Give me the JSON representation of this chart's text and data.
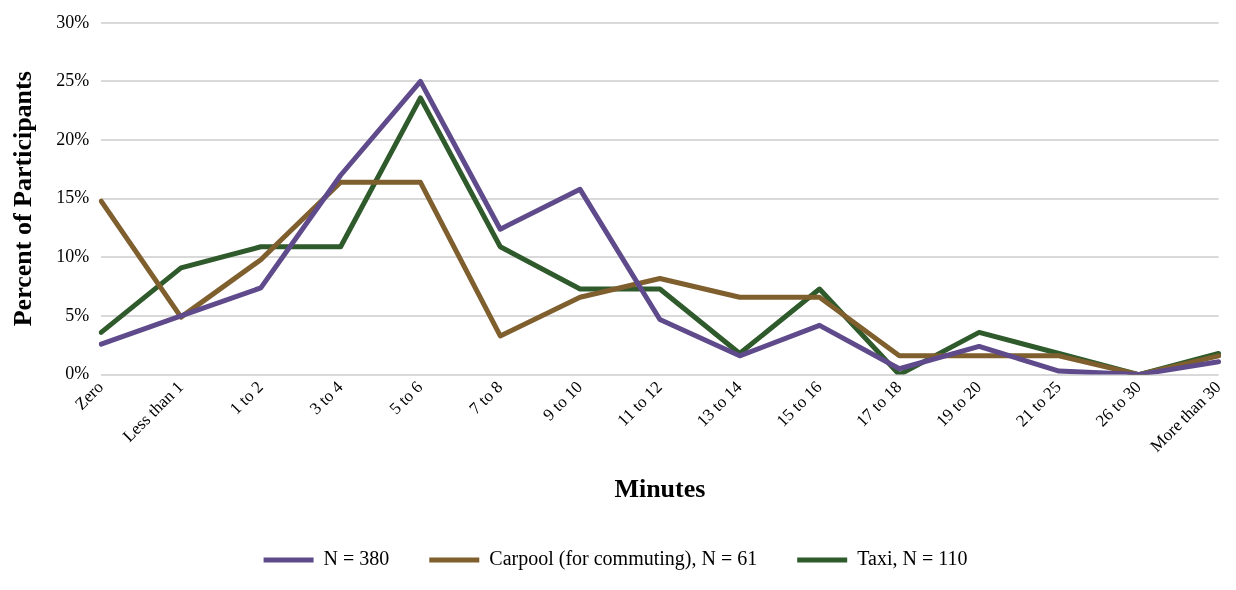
{
  "chart_data": {
    "type": "line",
    "xlabel": "Minutes",
    "ylabel": "Percent of Participants",
    "categories": [
      "Zero",
      "Less than 1",
      "1 to 2",
      "3 to 4",
      "5 to 6",
      "7 to 8",
      "9 to 10",
      "11 to 12",
      "13 to 14",
      "15 to 16",
      "17 to 18",
      "19 to 20",
      "21 to 25",
      "26 to 30",
      "More than 30"
    ],
    "series": [
      {
        "name": "N = 380",
        "color": "#5f4b8b",
        "values": [
          2.6,
          5.0,
          7.4,
          17.0,
          25.0,
          12.4,
          15.8,
          4.7,
          1.6,
          4.2,
          0.5,
          2.4,
          0.3,
          0,
          1.1
        ]
      },
      {
        "name": "Carpool (for commuting), N = 61",
        "color": "#7f5f2e",
        "values": [
          14.8,
          4.9,
          9.8,
          16.4,
          16.4,
          3.3,
          6.6,
          8.2,
          6.6,
          6.6,
          1.6,
          1.6,
          1.6,
          0,
          1.6
        ]
      },
      {
        "name": "Taxi, N = 110",
        "color": "#2f5a2b",
        "values": [
          3.6,
          9.1,
          10.9,
          10.9,
          23.6,
          10.9,
          7.3,
          7.3,
          1.8,
          7.3,
          0,
          3.6,
          1.8,
          0,
          1.8
        ]
      }
    ],
    "ylim": [
      0,
      30
    ],
    "yticks": [
      {
        "value": 0,
        "label": "0%"
      },
      {
        "value": 5,
        "label": "5%"
      },
      {
        "value": 10,
        "label": "10%"
      },
      {
        "value": 15,
        "label": "15%"
      },
      {
        "value": 20,
        "label": "20%"
      },
      {
        "value": 25,
        "label": "25%"
      },
      {
        "value": 30,
        "label": "30%"
      }
    ],
    "grid": "y",
    "legend": "bottom",
    "marker": "none",
    "line_style": "solid"
  }
}
